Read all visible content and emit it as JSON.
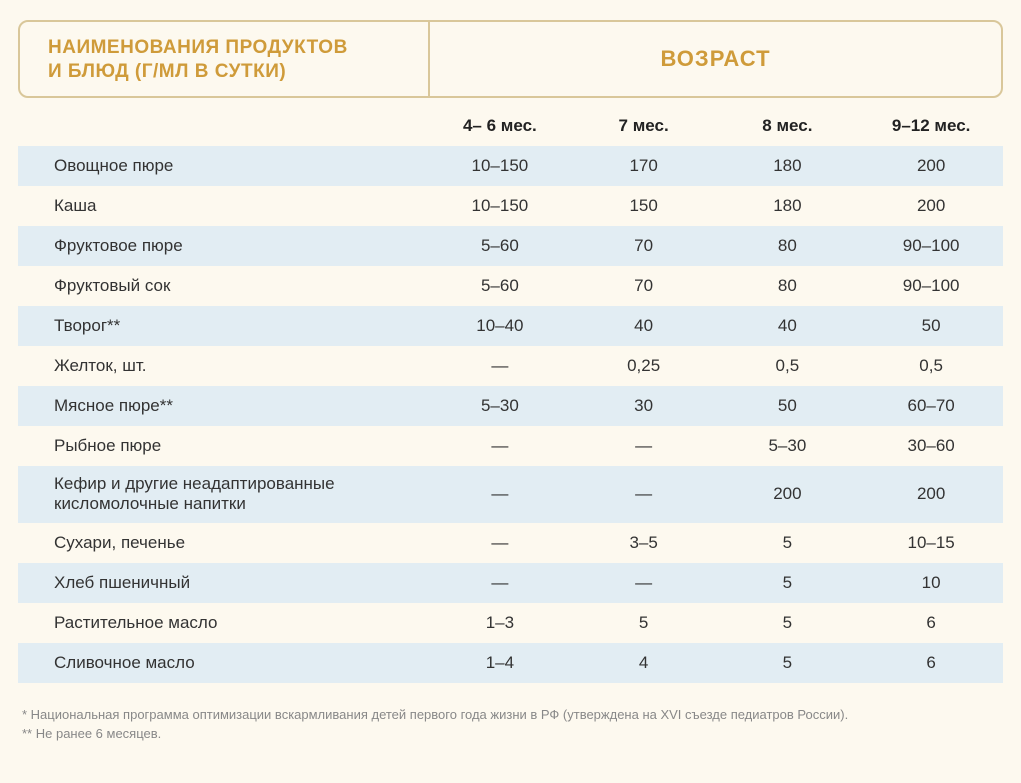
{
  "header": {
    "left_line1": "НАИМЕНОВАНИЯ ПРОДУКТОВ",
    "left_line2": "И БЛЮД (Г/МЛ В СУТКИ)",
    "right": "ВОЗРАСТ"
  },
  "age_columns": [
    "4– 6 мес.",
    "7 мес.",
    "8 мес.",
    "9–12 мес."
  ],
  "rows": [
    {
      "name": "Овощное пюре",
      "values": [
        "10–150",
        "170",
        "180",
        "200"
      ]
    },
    {
      "name": "Каша",
      "values": [
        "10–150",
        "150",
        "180",
        "200"
      ]
    },
    {
      "name": "Фруктовое пюре",
      "values": [
        "5–60",
        "70",
        "80",
        "90–100"
      ]
    },
    {
      "name": "Фруктовый сок",
      "values": [
        "5–60",
        "70",
        "80",
        "90–100"
      ]
    },
    {
      "name": "Творог**",
      "values": [
        "10–40",
        "40",
        "40",
        "50"
      ]
    },
    {
      "name": "Желток, шт.",
      "values": [
        "—",
        "0,25",
        "0,5",
        "0,5"
      ]
    },
    {
      "name": "Мясное пюре**",
      "values": [
        "5–30",
        "30",
        "50",
        "60–70"
      ]
    },
    {
      "name": "Рыбное пюре",
      "values": [
        "—",
        "—",
        "5–30",
        "30–60"
      ]
    },
    {
      "name": "Кефир и другие неадаптированные кисломолочные напитки",
      "values": [
        "—",
        "—",
        "200",
        "200"
      ]
    },
    {
      "name": "Сухари, печенье",
      "values": [
        "—",
        "3–5",
        "5",
        "10–15"
      ]
    },
    {
      "name": "Хлеб пшеничный",
      "values": [
        "—",
        "—",
        "5",
        "10"
      ]
    },
    {
      "name": "Растительное масло",
      "values": [
        "1–3",
        "5",
        "5",
        "6"
      ]
    },
    {
      "name": "Сливочное масло",
      "values": [
        "1–4",
        "4",
        "5",
        "6"
      ]
    }
  ],
  "footnotes": [
    "* Национальная программа оптимизации вскармливания детей первого года жизни в РФ (утверждена на XVI съезде педиатров России).",
    "** Не ранее 6 месяцев."
  ],
  "style": {
    "background_color": "#fdf9ef",
    "header_border_color": "#d9c79a",
    "header_text_color": "#cf9b3a",
    "stripe_color": "#e2edf3",
    "text_color": "#333333",
    "footnote_color": "#888888",
    "font_family": "Arial",
    "title_fontsize": 19,
    "age_title_fontsize": 22,
    "cell_fontsize": 17,
    "footnote_fontsize": 13
  }
}
